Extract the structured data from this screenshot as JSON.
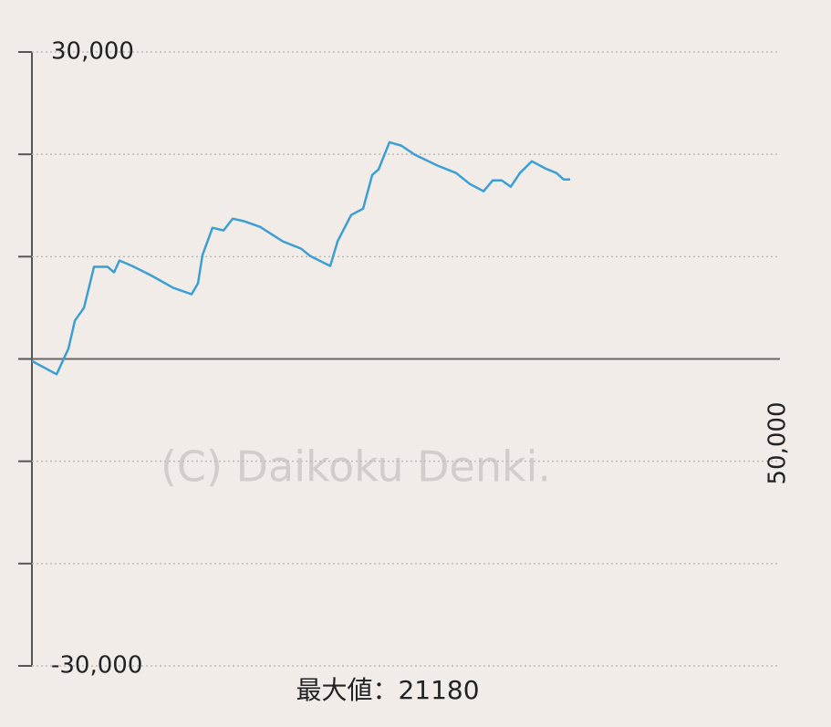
{
  "chart_data": {
    "type": "line",
    "watermark": "(C) Daikoku Denki.",
    "max_label": "最大値：21180",
    "x": [
      0,
      1650,
      2440,
      2870,
      3480,
      4150,
      5060,
      5490,
      5850,
      6710,
      7930,
      9450,
      10670,
      11100,
      11400,
      12070,
      12810,
      13420,
      14210,
      15250,
      16770,
      17990,
      18600,
      19940,
      20430,
      21340,
      22140,
      22750,
      23170,
      23900,
      24700,
      25610,
      27140,
      28360,
      29270,
      30190,
      30800,
      31400,
      32010,
      32620,
      33420,
      34330,
      35060,
      35550,
      35980
    ],
    "series": [
      {
        "color": "#3b9fd2",
        "values": [
          -200,
          -1500,
          1000,
          3740,
          5000,
          9000,
          9000,
          8460,
          9620,
          9080,
          8190,
          6950,
          6320,
          7390,
          10150,
          12820,
          12560,
          13710,
          13450,
          12910,
          11490,
          10780,
          10060,
          9080,
          11490,
          14070,
          14690,
          17990,
          18520,
          21180,
          20840,
          19950,
          18880,
          18170,
          17100,
          16390,
          17450,
          17450,
          16830,
          18170,
          19320,
          18610,
          18170,
          17540,
          17540
        ]
      }
    ],
    "xlim": [
      0,
      50000
    ],
    "xticks": [
      {
        "value": 50000,
        "label": "50,000"
      }
    ],
    "ylim": [
      -30000,
      30000
    ],
    "yticks": [
      {
        "value": -30000,
        "label": "-30,000"
      },
      {
        "value": -20000,
        "label": null
      },
      {
        "value": -10000,
        "label": null
      },
      {
        "value": 0,
        "label": null
      },
      {
        "value": 10000,
        "label": null
      },
      {
        "value": 20000,
        "label": null
      },
      {
        "value": 30000,
        "label": "30,000"
      }
    ],
    "grid": true
  }
}
